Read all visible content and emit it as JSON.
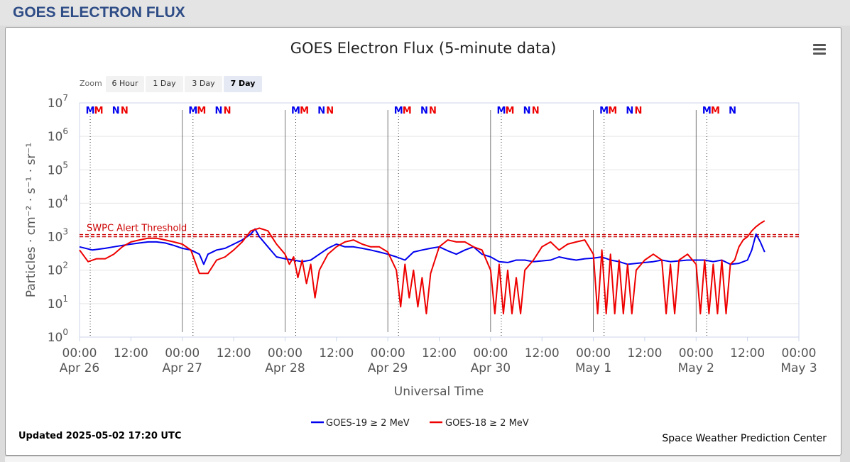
{
  "page_title": "GOES ELECTRON FLUX",
  "footer": {
    "updated": "Updated 2025-05-02 17:20 UTC",
    "credit": "Space Weather Prediction Center"
  },
  "zoom": {
    "label": "Zoom",
    "buttons": [
      "6 Hour",
      "1 Day",
      "3 Day",
      "7 Day"
    ],
    "active": "7 Day"
  },
  "icons": {
    "menu": "hamburger-menu-icon"
  },
  "colors": {
    "goes19": "#0000ee",
    "goes18": "#ee0000",
    "threshold": "#cc0000",
    "title_bar": "#2e4c86"
  },
  "chart_data": {
    "type": "line",
    "title": "GOES Electron Flux (5-minute data)",
    "xlabel": "Universal Time",
    "ylabel": "Particles · cm⁻² · s⁻¹ · sr⁻¹",
    "y_scale": "log",
    "ylim": [
      1,
      10000000
    ],
    "y_ticks": [
      {
        "value": 1,
        "base": "10",
        "exp": "0"
      },
      {
        "value": 10,
        "base": "10",
        "exp": "1"
      },
      {
        "value": 100,
        "base": "10",
        "exp": "2"
      },
      {
        "value": 1000,
        "base": "10",
        "exp": "3"
      },
      {
        "value": 10000,
        "base": "10",
        "exp": "4"
      },
      {
        "value": 100000,
        "base": "10",
        "exp": "5"
      },
      {
        "value": 1000000,
        "base": "10",
        "exp": "6"
      },
      {
        "value": 10000000,
        "base": "10",
        "exp": "7"
      }
    ],
    "xlim": [
      "2025-04-26 00:00",
      "2025-05-03 00:00"
    ],
    "x_ticks": [
      {
        "h": 0,
        "time": "00:00",
        "date": "Apr 26"
      },
      {
        "h": 12,
        "time": "12:00",
        "date": ""
      },
      {
        "h": 24,
        "time": "00:00",
        "date": "Apr 27"
      },
      {
        "h": 36,
        "time": "12:00",
        "date": ""
      },
      {
        "h": 48,
        "time": "00:00",
        "date": "Apr 28"
      },
      {
        "h": 60,
        "time": "12:00",
        "date": ""
      },
      {
        "h": 72,
        "time": "00:00",
        "date": "Apr 29"
      },
      {
        "h": 84,
        "time": "12:00",
        "date": ""
      },
      {
        "h": 96,
        "time": "00:00",
        "date": "Apr 30"
      },
      {
        "h": 108,
        "time": "12:00",
        "date": ""
      },
      {
        "h": 120,
        "time": "00:00",
        "date": "May 1"
      },
      {
        "h": 132,
        "time": "12:00",
        "date": ""
      },
      {
        "h": 144,
        "time": "00:00",
        "date": "May 2"
      },
      {
        "h": 156,
        "time": "12:00",
        "date": ""
      },
      {
        "h": 168,
        "time": "00:00",
        "date": "May 3"
      }
    ],
    "x_unit": "hours since Apr 26 00:00 UTC",
    "day_dividers_h": [
      24,
      48,
      72,
      96,
      120,
      144
    ],
    "threshold": {
      "label": "SWPC Alert Threshold",
      "value": 1000
    },
    "mn_markers": [
      {
        "h": 2.5,
        "label": "M",
        "sat": "GOES-19"
      },
      {
        "h": 4.5,
        "label": "M",
        "sat": "GOES-18"
      },
      {
        "h": 8.5,
        "label": "N",
        "sat": "GOES-19"
      },
      {
        "h": 10.5,
        "label": "N",
        "sat": "GOES-18"
      },
      {
        "h": 26.5,
        "label": "M",
        "sat": "GOES-19"
      },
      {
        "h": 28.5,
        "label": "M",
        "sat": "GOES-18"
      },
      {
        "h": 32.5,
        "label": "N",
        "sat": "GOES-19"
      },
      {
        "h": 34.5,
        "label": "N",
        "sat": "GOES-18"
      },
      {
        "h": 50.5,
        "label": "M",
        "sat": "GOES-19"
      },
      {
        "h": 52.5,
        "label": "M",
        "sat": "GOES-18"
      },
      {
        "h": 56.5,
        "label": "N",
        "sat": "GOES-19"
      },
      {
        "h": 58.5,
        "label": "N",
        "sat": "GOES-18"
      },
      {
        "h": 74.5,
        "label": "M",
        "sat": "GOES-19"
      },
      {
        "h": 76.5,
        "label": "M",
        "sat": "GOES-18"
      },
      {
        "h": 80.5,
        "label": "N",
        "sat": "GOES-19"
      },
      {
        "h": 82.5,
        "label": "N",
        "sat": "GOES-18"
      },
      {
        "h": 98.5,
        "label": "M",
        "sat": "GOES-19"
      },
      {
        "h": 100.5,
        "label": "M",
        "sat": "GOES-18"
      },
      {
        "h": 104.5,
        "label": "N",
        "sat": "GOES-19"
      },
      {
        "h": 106.5,
        "label": "N",
        "sat": "GOES-18"
      },
      {
        "h": 122.5,
        "label": "M",
        "sat": "GOES-19"
      },
      {
        "h": 124.5,
        "label": "M",
        "sat": "GOES-18"
      },
      {
        "h": 128.5,
        "label": "N",
        "sat": "GOES-19"
      },
      {
        "h": 130.5,
        "label": "N",
        "sat": "GOES-18"
      },
      {
        "h": 146.5,
        "label": "M",
        "sat": "GOES-19"
      },
      {
        "h": 148.5,
        "label": "M",
        "sat": "GOES-18"
      },
      {
        "h": 152.5,
        "label": "N",
        "sat": "GOES-19"
      }
    ],
    "dotted_lines_h": [
      2.5,
      26.5,
      50.5,
      74.5,
      98.5,
      122.5,
      146.5
    ],
    "series": [
      {
        "name": "GOES-19 ≥ 2 MeV",
        "color": "#0000ee",
        "x": [
          0,
          3,
          6,
          8,
          10,
          12,
          14,
          16,
          18,
          20,
          22,
          24,
          26,
          28,
          29,
          30,
          32,
          34,
          36,
          38,
          40,
          41,
          42,
          44,
          46,
          48,
          50,
          52,
          54,
          56,
          58,
          60,
          62,
          64,
          66,
          68,
          70,
          72,
          74,
          76,
          78,
          80,
          82,
          84,
          86,
          88,
          90,
          92,
          94,
          96,
          98,
          100,
          102,
          104,
          106,
          108,
          110,
          112,
          114,
          116,
          118,
          120,
          122,
          124,
          126,
          128,
          130,
          132,
          134,
          136,
          138,
          140,
          142,
          144,
          146,
          148,
          150,
          152,
          154,
          156,
          157,
          158,
          159,
          160
        ],
        "values": [
          500,
          400,
          450,
          500,
          550,
          600,
          650,
          700,
          700,
          650,
          550,
          450,
          400,
          300,
          150,
          300,
          400,
          450,
          600,
          800,
          1200,
          1700,
          1000,
          500,
          250,
          220,
          200,
          180,
          200,
          300,
          450,
          600,
          500,
          500,
          450,
          400,
          350,
          300,
          250,
          200,
          350,
          400,
          450,
          500,
          380,
          300,
          400,
          500,
          300,
          250,
          180,
          170,
          200,
          200,
          180,
          190,
          200,
          250,
          220,
          200,
          220,
          230,
          250,
          200,
          180,
          150,
          160,
          170,
          180,
          200,
          180,
          190,
          200,
          200,
          200,
          180,
          200,
          150,
          160,
          200,
          400,
          1200,
          700,
          350
        ]
      },
      {
        "name": "GOES-18 ≥ 2 MeV",
        "color": "#ee0000",
        "x": [
          0,
          2,
          4,
          6,
          8,
          10,
          12,
          14,
          16,
          18,
          20,
          22,
          24,
          26,
          28,
          30,
          32,
          34,
          36,
          38,
          40,
          42,
          44,
          46,
          48,
          49,
          50,
          51,
          52,
          53,
          54,
          55,
          56,
          58,
          60,
          62,
          64,
          66,
          68,
          70,
          72,
          74,
          75,
          76,
          77,
          78,
          79,
          80,
          81,
          82,
          84,
          86,
          88,
          90,
          92,
          94,
          96,
          97,
          98,
          99,
          100,
          101,
          102,
          103,
          104,
          106,
          108,
          110,
          112,
          114,
          116,
          118,
          120,
          121,
          122,
          123,
          124,
          125,
          126,
          127,
          128,
          129,
          130,
          132,
          134,
          136,
          137,
          138,
          139,
          140,
          142,
          144,
          145,
          146,
          147,
          148,
          149,
          150,
          151,
          152,
          153,
          154,
          155,
          156,
          157,
          158,
          159,
          160
        ],
        "values": [
          400,
          180,
          220,
          220,
          300,
          500,
          700,
          800,
          900,
          900,
          800,
          700,
          600,
          400,
          80,
          80,
          200,
          250,
          400,
          700,
          1500,
          1800,
          1500,
          600,
          300,
          150,
          250,
          60,
          200,
          40,
          150,
          15,
          100,
          300,
          500,
          700,
          800,
          600,
          500,
          500,
          350,
          100,
          8,
          150,
          15,
          100,
          8,
          60,
          5,
          80,
          500,
          800,
          700,
          700,
          500,
          400,
          100,
          5,
          150,
          5,
          100,
          5,
          60,
          5,
          100,
          200,
          500,
          700,
          400,
          600,
          700,
          800,
          300,
          5,
          400,
          5,
          300,
          5,
          200,
          5,
          150,
          5,
          100,
          200,
          300,
          200,
          5,
          150,
          5,
          200,
          300,
          150,
          5,
          200,
          5,
          150,
          5,
          200,
          5,
          150,
          200,
          500,
          800,
          1000,
          1500,
          2000,
          2500,
          3000
        ]
      }
    ]
  }
}
